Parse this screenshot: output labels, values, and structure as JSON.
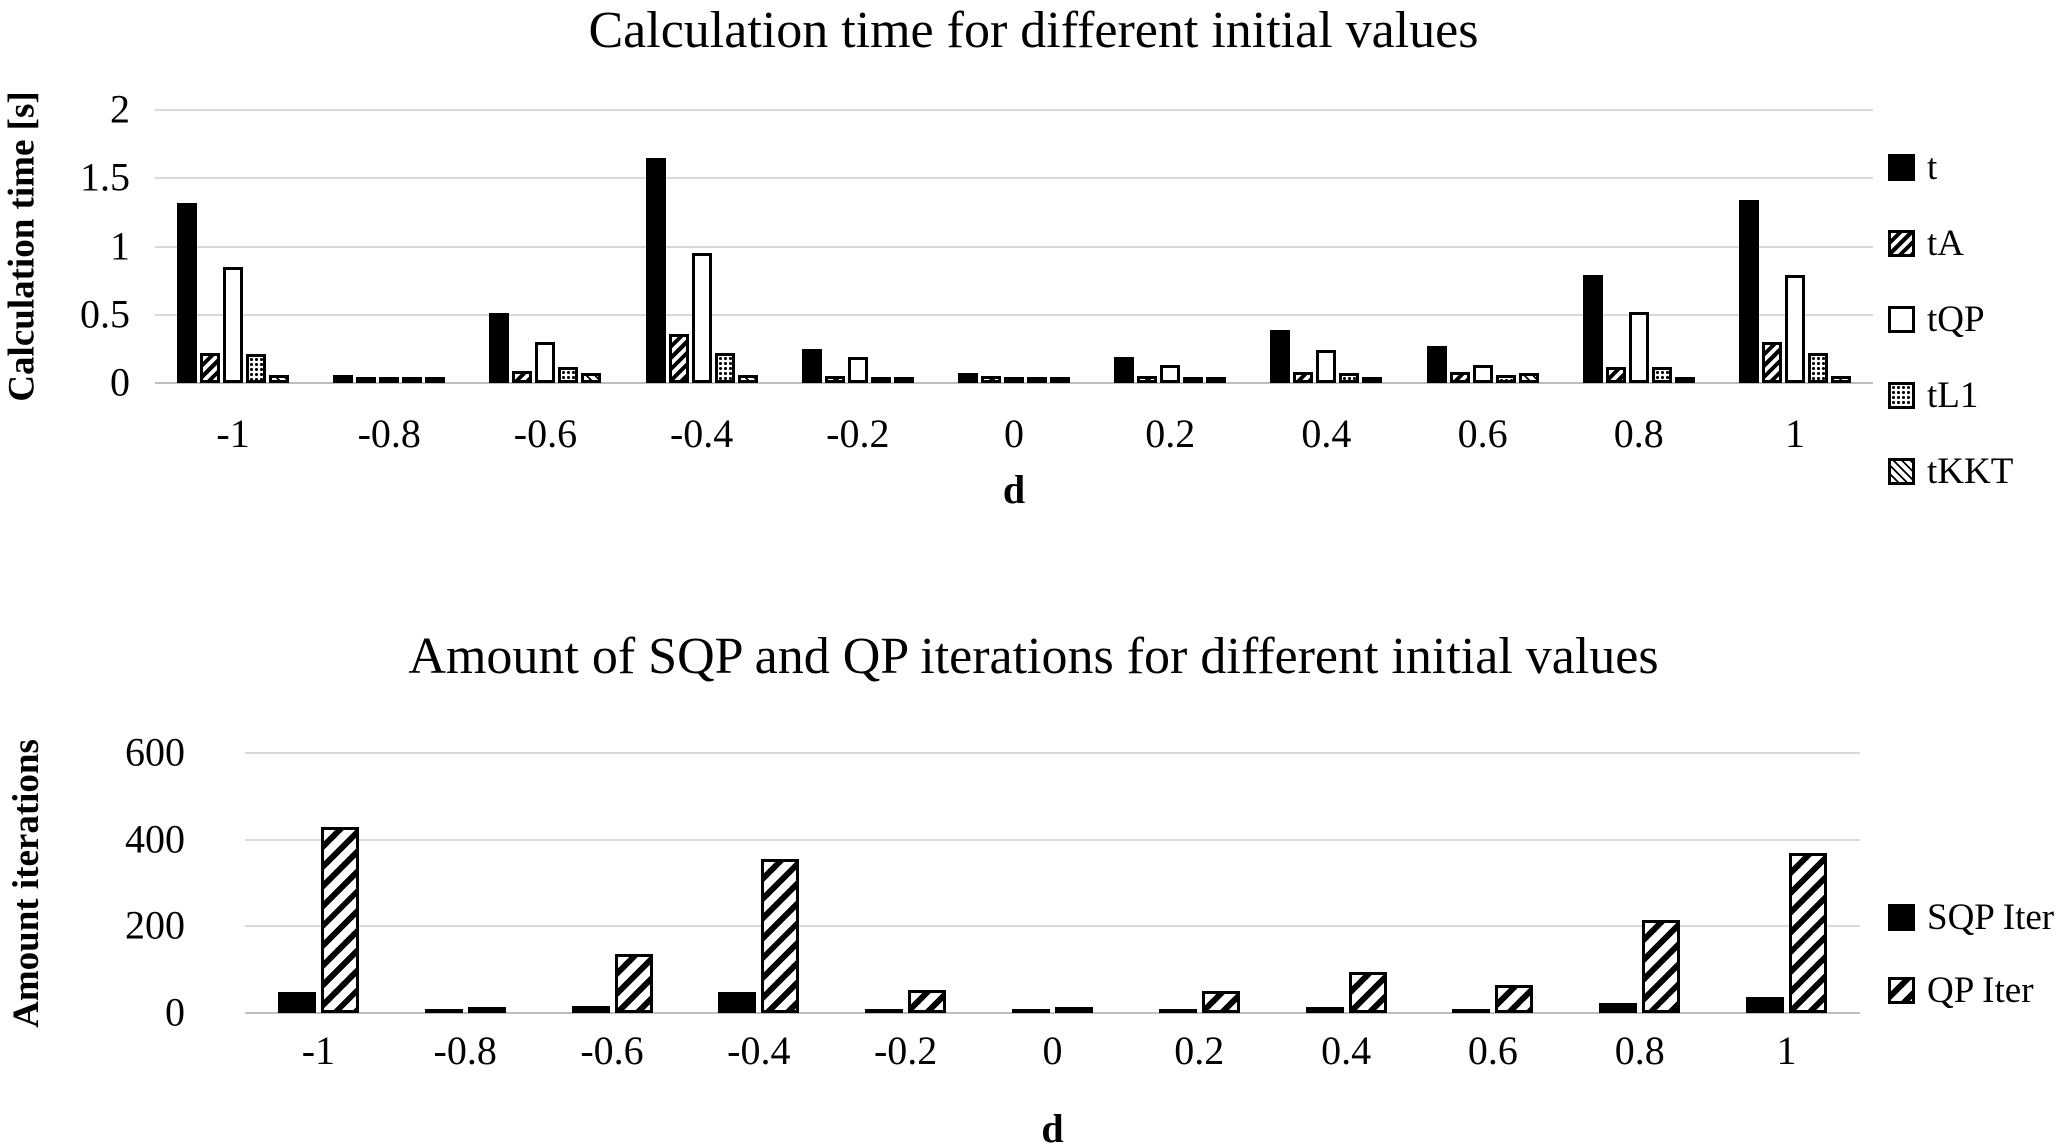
{
  "figure": {
    "background": "#ffffff",
    "text_color": "#000000",
    "gridline_color": "#d9d9d9",
    "axis_line_color": "#bfbfbf"
  },
  "chart_data": [
    {
      "type": "bar",
      "title": "Calculation time for different initial values",
      "ylabel": "Calculation time [s]",
      "xlabel": "d",
      "ylim": [
        0,
        2
      ],
      "y_ticks": [
        2,
        1.5,
        1,
        0.5,
        0
      ],
      "y_tick_labels": [
        "2",
        "1.5",
        "1",
        "0.5",
        "0"
      ],
      "grid": "horizontal",
      "legend_position": "right",
      "categories": [
        "-1",
        "-0.8",
        "-0.6",
        "-0.4",
        "-0.2",
        "0",
        "0.2",
        "0.4",
        "0.6",
        "0.8",
        "1"
      ],
      "series": [
        {
          "name": "t",
          "pattern": "solid",
          "values": [
            1.32,
            0.06,
            0.51,
            1.65,
            0.25,
            0.07,
            0.19,
            0.39,
            0.27,
            0.79,
            1.34
          ]
        },
        {
          "name": "tA",
          "pattern": "hatch-forward",
          "values": [
            0.22,
            0.04,
            0.09,
            0.36,
            0.05,
            0.05,
            0.05,
            0.08,
            0.08,
            0.12,
            0.3
          ]
        },
        {
          "name": "tQP",
          "pattern": "plain",
          "values": [
            0.85,
            0.03,
            0.3,
            0.95,
            0.19,
            0.04,
            0.13,
            0.24,
            0.13,
            0.52,
            0.79
          ]
        },
        {
          "name": "tL1",
          "pattern": "dots",
          "values": [
            0.21,
            0.02,
            0.12,
            0.22,
            0.03,
            0.02,
            0.03,
            0.07,
            0.06,
            0.12,
            0.22
          ]
        },
        {
          "name": "tKKT",
          "pattern": "hatch-back",
          "values": [
            0.06,
            0.03,
            0.07,
            0.06,
            0.03,
            0.03,
            0.03,
            0.04,
            0.07,
            0.02,
            0.05
          ]
        }
      ]
    },
    {
      "type": "bar",
      "title": "Amount of SQP and QP iterations for different initial values",
      "ylabel": "Amount iterations",
      "xlabel": "d",
      "ylim": [
        0,
        600
      ],
      "y_ticks": [
        600,
        400,
        200,
        0
      ],
      "y_tick_labels": [
        "600",
        "400",
        "200",
        "0"
      ],
      "grid": "horizontal",
      "legend_position": "right",
      "categories": [
        "-1",
        "-0.8",
        "-0.6",
        "-0.4",
        "-0.2",
        "0",
        "0.2",
        "0.4",
        "0.6",
        "0.8",
        "1"
      ],
      "series": [
        {
          "name": "SQP Iter",
          "pattern": "solid",
          "values": [
            48,
            4,
            15,
            48,
            8,
            4,
            6,
            14,
            8,
            24,
            38
          ]
        },
        {
          "name": "QP Iter",
          "pattern": "hatch-forward-lg",
          "values": [
            430,
            12,
            135,
            355,
            52,
            10,
            50,
            95,
            65,
            215,
            370
          ]
        }
      ]
    }
  ]
}
